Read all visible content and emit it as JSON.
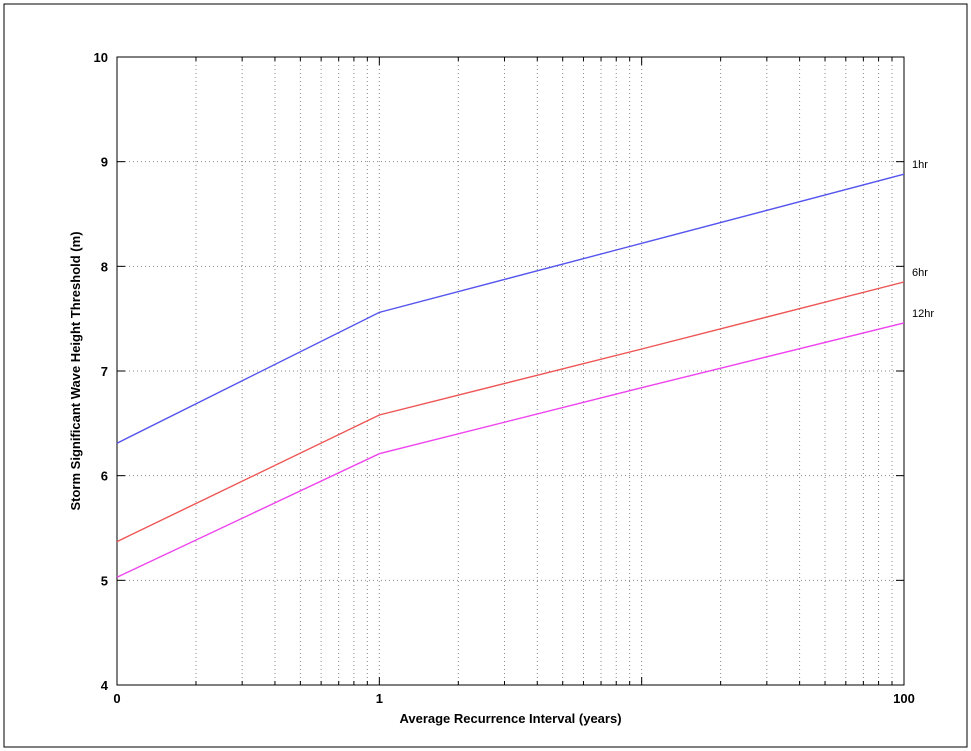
{
  "chart_data": {
    "type": "line",
    "title": "",
    "xlabel": "Average Recurrence Interval (years)",
    "ylabel": "Storm Significant Wave Height Threshold (m)",
    "xscale": "log",
    "xlim": [
      0.1,
      100
    ],
    "ylim": [
      4,
      10
    ],
    "grid": true,
    "x_ticks": [
      {
        "value": 0.1,
        "label": "0"
      },
      {
        "value": 1,
        "label": "1"
      },
      {
        "value": 100,
        "label": "100"
      }
    ],
    "y_ticks": [
      {
        "value": 4,
        "label": "4"
      },
      {
        "value": 5,
        "label": "5"
      },
      {
        "value": 6,
        "label": "6"
      },
      {
        "value": 7,
        "label": "7"
      },
      {
        "value": 8,
        "label": "8"
      },
      {
        "value": 9,
        "label": "9"
      },
      {
        "value": 10,
        "label": "10"
      }
    ],
    "series": [
      {
        "name": "1hr",
        "color": "#5555ee",
        "x": [
          0.1,
          1,
          10,
          100
        ],
        "y": [
          6.31,
          7.56,
          8.22,
          8.88
        ]
      },
      {
        "name": "6hr",
        "color": "#ee5555",
        "x": [
          0.1,
          1,
          10,
          100
        ],
        "y": [
          5.37,
          6.58,
          7.21,
          7.85
        ]
      },
      {
        "name": "12hr",
        "color": "#ee44ee",
        "x": [
          0.1,
          1,
          10,
          100
        ],
        "y": [
          5.03,
          6.21,
          6.84,
          7.46
        ]
      }
    ]
  }
}
